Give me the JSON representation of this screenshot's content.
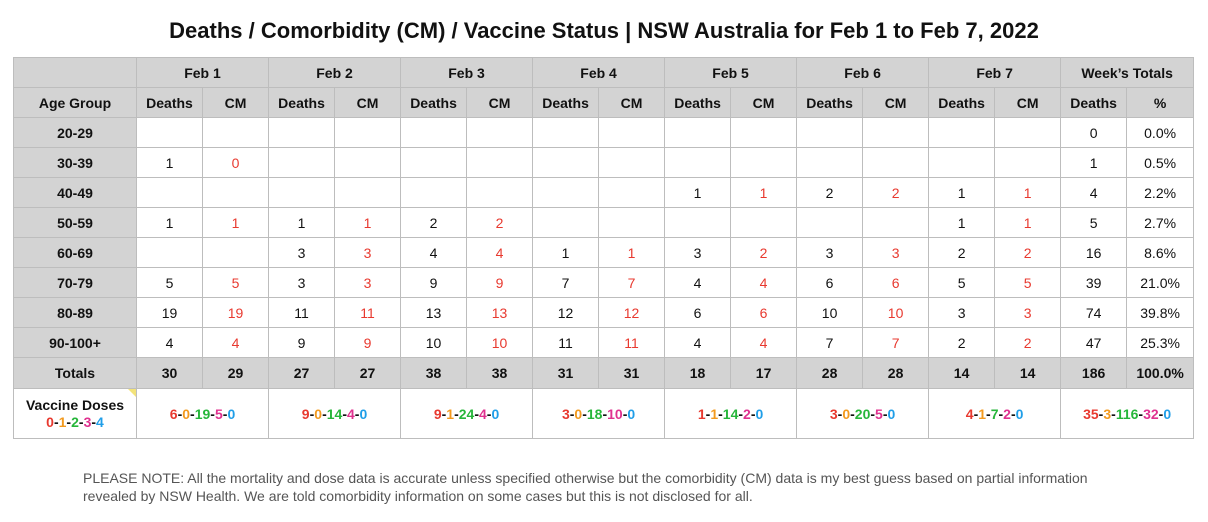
{
  "title": "Deaths / Comorbidity (CM) / Vaccine Status | NSW Australia for Feb 1 to Feb 7, 2022",
  "header": {
    "dates": [
      "Feb 1",
      "Feb 2",
      "Feb 3",
      "Feb 4",
      "Feb 5",
      "Feb 6",
      "Feb 7"
    ],
    "week_totals": "Week’s Totals",
    "age_group": "Age Group",
    "deaths": "Deaths",
    "cm": "CM",
    "pct": "%"
  },
  "rows": [
    {
      "age": "20-29",
      "cells": [
        "",
        "",
        "",
        "",
        "",
        "",
        "",
        "",
        "",
        "",
        "",
        "",
        "",
        ""
      ],
      "total": "0",
      "pct": "0.0%"
    },
    {
      "age": "30-39",
      "cells": [
        "1",
        "0",
        "",
        "",
        "",
        "",
        "",
        "",
        "",
        "",
        "",
        "",
        "",
        ""
      ],
      "total": "1",
      "pct": "0.5%"
    },
    {
      "age": "40-49",
      "cells": [
        "",
        "",
        "",
        "",
        "",
        "",
        "",
        "",
        "1",
        "1",
        "2",
        "2",
        "1",
        "1"
      ],
      "total": "4",
      "pct": "2.2%"
    },
    {
      "age": "50-59",
      "cells": [
        "1",
        "1",
        "1",
        "1",
        "2",
        "2",
        "",
        "",
        "",
        "",
        "",
        "",
        "1",
        "1"
      ],
      "total": "5",
      "pct": "2.7%"
    },
    {
      "age": "60-69",
      "cells": [
        "",
        "",
        "3",
        "3",
        "4",
        "4",
        "1",
        "1",
        "3",
        "2",
        "3",
        "3",
        "2",
        "2"
      ],
      "total": "16",
      "pct": "8.6%"
    },
    {
      "age": "70-79",
      "cells": [
        "5",
        "5",
        "3",
        "3",
        "9",
        "9",
        "7",
        "7",
        "4",
        "4",
        "6",
        "6",
        "5",
        "5"
      ],
      "total": "39",
      "pct": "21.0%"
    },
    {
      "age": "80-89",
      "cells": [
        "19",
        "19",
        "11",
        "11",
        "13",
        "13",
        "12",
        "12",
        "6",
        "6",
        "10",
        "10",
        "3",
        "3"
      ],
      "total": "74",
      "pct": "39.8%"
    },
    {
      "age": "90-100+",
      "cells": [
        "4",
        "4",
        "9",
        "9",
        "10",
        "10",
        "11",
        "11",
        "4",
        "4",
        "7",
        "7",
        "2",
        "2"
      ],
      "total": "47",
      "pct": "25.3%"
    }
  ],
  "totals": {
    "label": "Totals",
    "cells": [
      "30",
      "29",
      "27",
      "27",
      "38",
      "38",
      "31",
      "31",
      "18",
      "17",
      "28",
      "28",
      "14",
      "14"
    ],
    "total": "186",
    "pct": "100.0%"
  },
  "vaccine": {
    "label": "Vaccine Doses",
    "legend": [
      "0",
      "1",
      "2",
      "3",
      "4"
    ],
    "days": [
      [
        "6",
        "0",
        "19",
        "5",
        "0"
      ],
      [
        "9",
        "0",
        "14",
        "4",
        "0"
      ],
      [
        "9",
        "1",
        "24",
        "4",
        "0"
      ],
      [
        "3",
        "0",
        "18",
        "10",
        "0"
      ],
      [
        "1",
        "1",
        "14",
        "2",
        "0"
      ],
      [
        "3",
        "0",
        "20",
        "5",
        "0"
      ],
      [
        "4",
        "1",
        "7",
        "2",
        "0"
      ]
    ],
    "week": [
      "35",
      "3",
      "116",
      "32",
      "0"
    ]
  },
  "colors": {
    "dose0": "#e8392f",
    "dose1": "#f39a1e",
    "dose2": "#26b63a",
    "dose3": "#e0318f",
    "dose4": "#1f9ee8",
    "cm": "#e8392f",
    "header_bg": "#d3d3d3"
  },
  "note": "PLEASE NOTE: All the mortality and dose data is accurate unless specified otherwise but the comorbidity (CM) data is my best guess based on partial information revealed by NSW Health. We are told comorbidity information on some cases but this is not disclosed for all."
}
